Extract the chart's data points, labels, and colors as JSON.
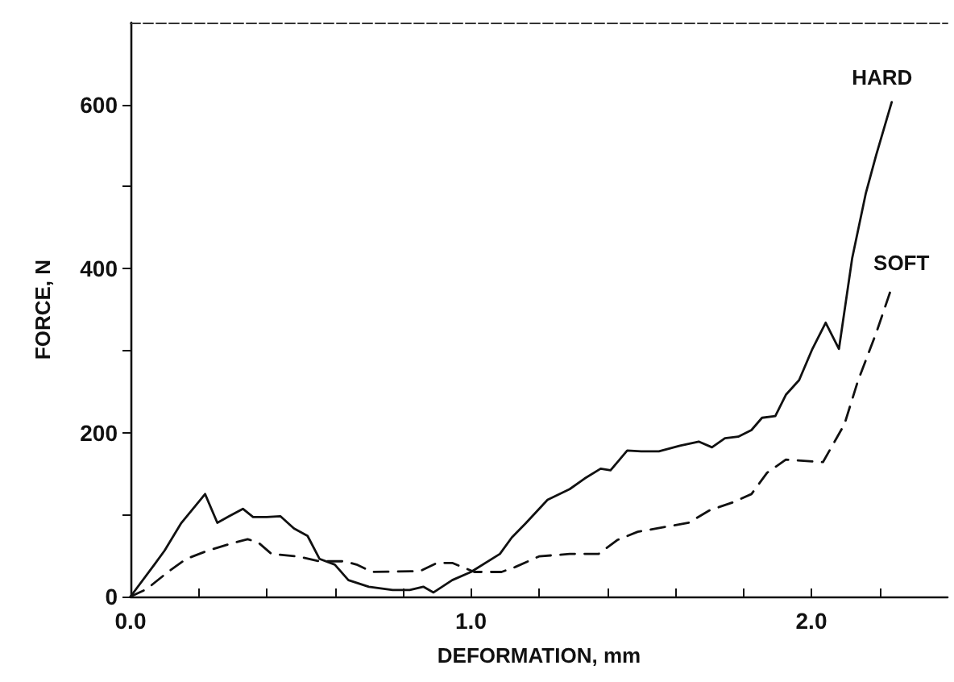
{
  "chart_data": {
    "type": "line",
    "xlabel": "DEFORMATION, mm",
    "ylabel": "FORCE, N",
    "xlim": [
      0,
      2.4
    ],
    "ylim": [
      0,
      700
    ],
    "xticks": [
      {
        "value": 0,
        "label": "0.0"
      },
      {
        "value": 0.2,
        "label": null
      },
      {
        "value": 0.4,
        "label": null
      },
      {
        "value": 0.6,
        "label": null
      },
      {
        "value": 0.8,
        "label": null
      },
      {
        "value": 1,
        "label": "1.0"
      },
      {
        "value": 1.2,
        "label": null
      },
      {
        "value": 1.4,
        "label": null
      },
      {
        "value": 1.6,
        "label": null
      },
      {
        "value": 1.8,
        "label": null
      },
      {
        "value": 2,
        "label": "2.0"
      },
      {
        "value": 2.2,
        "label": null
      }
    ],
    "yticks": [
      0,
      {
        "value": 100,
        "label": null
      },
      200,
      {
        "value": 300,
        "label": null
      },
      400,
      {
        "value": 500,
        "label": null
      },
      600
    ],
    "grid": false,
    "legend": false,
    "marker": "none",
    "series": [
      {
        "name": "HARD",
        "color": "#111111",
        "line_style": "solid",
        "x": [
          0,
          0.07,
          0.1,
          0.148,
          0.219,
          0.255,
          0.29,
          0.33,
          0.36,
          0.4,
          0.44,
          0.48,
          0.52,
          0.555,
          0.6,
          0.64,
          0.7,
          0.77,
          0.82,
          0.86,
          0.89,
          0.945,
          1.0,
          1.085,
          1.12,
          1.16,
          1.225,
          1.29,
          1.334,
          1.381,
          1.41,
          1.459,
          1.5,
          1.552,
          1.614,
          1.669,
          1.708,
          1.746,
          1.785,
          1.824,
          1.855,
          1.894,
          1.925,
          1.964,
          2.003,
          2.042,
          2.081,
          2.12,
          2.16,
          2.19,
          2.236
        ],
        "values": [
          0,
          39,
          56,
          89,
          125,
          90,
          98,
          107,
          97,
          97,
          98,
          83,
          74,
          46,
          39,
          20,
          12,
          8,
          8,
          12,
          5,
          20,
          30,
          52,
          72,
          89,
          118,
          131,
          144,
          156,
          154,
          178,
          177,
          177,
          184,
          189,
          182,
          193,
          195,
          203,
          218,
          220,
          246,
          264,
          302,
          334,
          302,
          413,
          492,
          538,
          603
        ]
      },
      {
        "name": "SOFT",
        "color": "#111111",
        "line_style": "dashed",
        "x": [
          0,
          0.047,
          0.11,
          0.164,
          0.227,
          0.29,
          0.344,
          0.375,
          0.414,
          0.49,
          0.555,
          0.63,
          0.664,
          0.71,
          0.85,
          0.9,
          0.945,
          1.01,
          1.09,
          1.13,
          1.2,
          1.29,
          1.375,
          1.43,
          1.49,
          1.57,
          1.64,
          1.7,
          1.77,
          1.824,
          1.87,
          1.925,
          2.034,
          2.097,
          2.136,
          2.19,
          2.236
        ],
        "values": [
          0,
          9,
          30,
          46,
          56,
          64,
          70,
          66,
          52,
          49,
          43,
          43,
          39,
          30,
          31,
          41,
          41,
          30,
          30,
          36,
          49,
          52,
          52,
          69,
          79,
          85,
          90,
          105,
          115,
          125,
          151,
          167,
          164,
          210,
          262,
          321,
          377
        ]
      }
    ]
  }
}
